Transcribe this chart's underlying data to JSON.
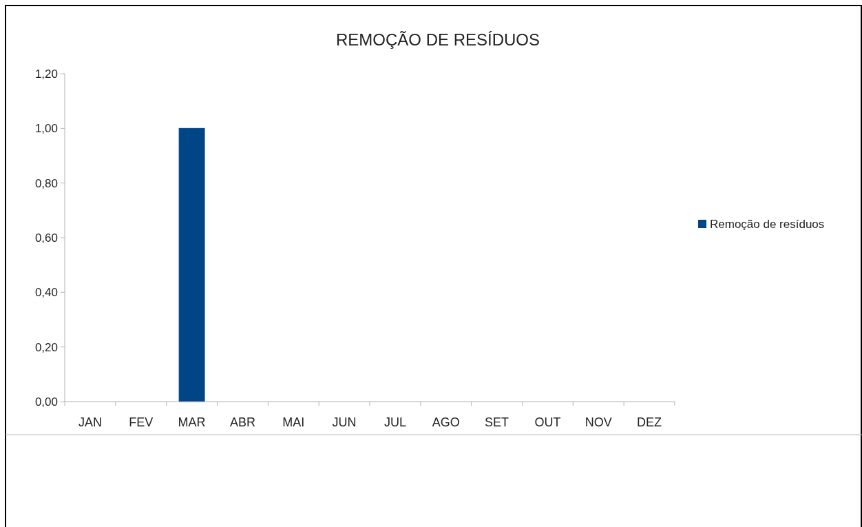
{
  "chart_data": {
    "type": "bar",
    "title": "REMOÇÃO DE RESÍDUOS",
    "categories": [
      "JAN",
      "FEV",
      "MAR",
      "ABR",
      "MAI",
      "JUN",
      "JUL",
      "AGO",
      "SET",
      "OUT",
      "NOV",
      "DEZ"
    ],
    "series": [
      {
        "name": "Remoção de resíduos",
        "color": "#004586",
        "values": [
          0,
          0,
          1,
          0,
          0,
          0,
          0,
          0,
          0,
          0,
          0,
          0
        ]
      }
    ],
    "ylim": [
      0,
      1.2
    ],
    "yticks": [
      {
        "value": 0,
        "label": "0,00"
      },
      {
        "value": 0.2,
        "label": "0,20"
      },
      {
        "value": 0.4,
        "label": "0,40"
      },
      {
        "value": 0.6,
        "label": "0,60"
      },
      {
        "value": 0.8,
        "label": "0,80"
      },
      {
        "value": 1,
        "label": "1,00"
      },
      {
        "value": 1.2,
        "label": "1,20"
      }
    ],
    "legend": "right"
  }
}
